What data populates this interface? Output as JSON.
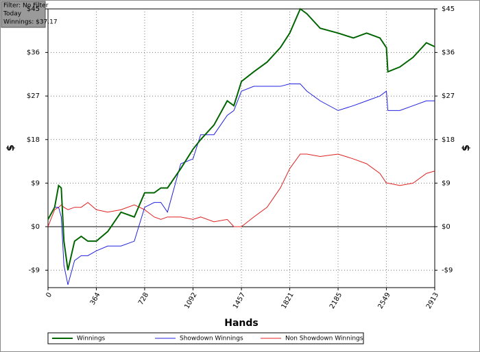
{
  "chart_data": {
    "type": "line",
    "annotations": [
      "Filter: No Filter",
      "Today",
      "Winnings: $37.17"
    ],
    "xlabel": "Hands",
    "ylabel": "$",
    "x": [
      0,
      50,
      80,
      100,
      120,
      150,
      200,
      250,
      300,
      364,
      450,
      550,
      650,
      728,
      800,
      850,
      900,
      1000,
      1092,
      1150,
      1250,
      1350,
      1400,
      1457,
      1550,
      1650,
      1750,
      1821,
      1900,
      1950,
      2050,
      2185,
      2300,
      2400,
      2500,
      2549,
      2560,
      2650,
      2750,
      2850,
      2913
    ],
    "series": [
      {
        "name": "Winnings",
        "color": "#006400",
        "values": [
          1.5,
          4,
          8.5,
          8,
          -3,
          -9,
          -3,
          -2,
          -3,
          -3,
          -1,
          3,
          2,
          7,
          7,
          8,
          8,
          12,
          16,
          18,
          21,
          26,
          25,
          30,
          32,
          34,
          37,
          40,
          45,
          44,
          41,
          40,
          39,
          40,
          39,
          37,
          32,
          33,
          35,
          38,
          37.2
        ]
      },
      {
        "name": "Showdown Winnings",
        "color": "#2020e0",
        "values": [
          1.5,
          4,
          4,
          2,
          -8,
          -12,
          -7,
          -6,
          -6,
          -5,
          -4,
          -4,
          -3,
          4,
          5,
          5,
          3,
          13,
          14,
          19,
          19,
          23,
          24,
          28,
          29,
          29,
          29,
          29.5,
          29.5,
          28,
          26,
          24,
          25,
          26,
          27,
          28,
          24,
          24,
          25,
          26,
          26
        ]
      },
      {
        "name": "Non Showdown Winnings",
        "color": "#e02020",
        "values": [
          0,
          3.5,
          4,
          4.5,
          4,
          3.5,
          4,
          4,
          5,
          3.5,
          3,
          3.5,
          4.5,
          3.5,
          2,
          1.5,
          2,
          2,
          1.5,
          2,
          1,
          1.5,
          0,
          0,
          2,
          4,
          8,
          12,
          15,
          15,
          14.5,
          15,
          14,
          13,
          11,
          9,
          9,
          8.5,
          9,
          11,
          11.5
        ]
      }
    ],
    "xlim": [
      0,
      2913
    ],
    "xticks": [
      0,
      364,
      728,
      1092,
      1457,
      1821,
      2185,
      2549,
      2913
    ],
    "ylim": [
      -12.6,
      45
    ],
    "yticks": [
      {
        "value": -9,
        "label": "-$9"
      },
      {
        "value": 0,
        "label": "$0"
      },
      {
        "value": 9,
        "label": "$9"
      },
      {
        "value": 18,
        "label": "$18"
      },
      {
        "value": 27,
        "label": "$27"
      },
      {
        "value": 36,
        "label": "$36"
      },
      {
        "value": 45,
        "label": "$45"
      }
    ],
    "grid": true
  }
}
